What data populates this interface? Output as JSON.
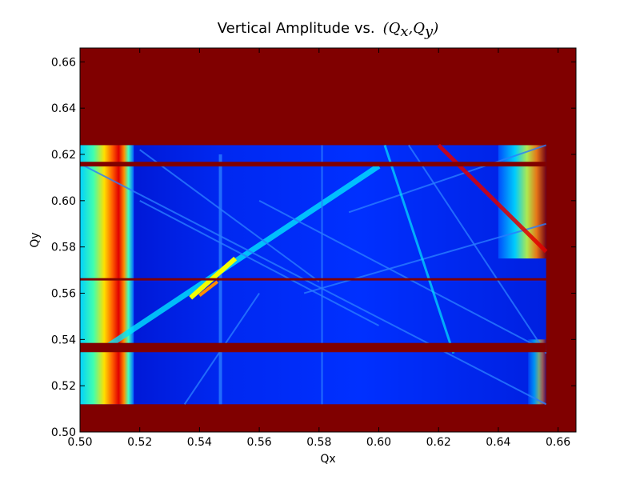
{
  "chart_data": {
    "type": "heatmap",
    "title_prefix": "Vertical Amplitude vs.",
    "title_math": "(Q",
    "title_sub_x": "x",
    "title_comma": ",Q",
    "title_sub_y": "y",
    "title_close": ")",
    "xlabel": "Qx",
    "ylabel": "Qy",
    "xlim": [
      0.5,
      0.666
    ],
    "ylim": [
      0.5,
      0.666
    ],
    "x_ticks": [
      "0.50",
      "0.52",
      "0.54",
      "0.56",
      "0.58",
      "0.60",
      "0.62",
      "0.64",
      "0.66"
    ],
    "y_ticks": [
      "0.50",
      "0.52",
      "0.54",
      "0.56",
      "0.58",
      "0.60",
      "0.62",
      "0.64",
      "0.66"
    ],
    "colormap": "jet",
    "colors": {
      "background_max": "#800000",
      "field_low": "#00009f",
      "field_mid": "#0a3cff",
      "line_bright": "#2a7dff",
      "cyan": "#00e5ff",
      "yellow": "#f2ff00",
      "orange": "#ff8c00",
      "red": "#e00000"
    },
    "data_region": {
      "x_range": [
        0.5,
        0.656
      ],
      "y_range": [
        0.512,
        0.624
      ]
    },
    "saturated_bands": [
      {
        "axis": "y",
        "from": 0.5345,
        "to": 0.5385
      },
      {
        "axis": "y",
        "from": 0.6148,
        "to": 0.6168
      },
      {
        "axis": "y",
        "from": 0.5655,
        "to": 0.5665
      }
    ],
    "resonance_lines": [
      {
        "x1": 0.508,
        "y1": 0.536,
        "x2": 0.6,
        "y2": 0.615,
        "strength": "high"
      },
      {
        "x1": 0.5,
        "y1": 0.616,
        "x2": 0.656,
        "y2": 0.512,
        "strength": "low"
      },
      {
        "x1": 0.56,
        "y1": 0.6,
        "x2": 0.656,
        "y2": 0.535,
        "strength": "low"
      },
      {
        "x1": 0.61,
        "y1": 0.624,
        "x2": 0.656,
        "y2": 0.534,
        "strength": "low"
      },
      {
        "x1": 0.52,
        "y1": 0.6,
        "x2": 0.6,
        "y2": 0.546,
        "strength": "low"
      },
      {
        "x1": 0.52,
        "y1": 0.622,
        "x2": 0.58,
        "y2": 0.565,
        "strength": "low"
      },
      {
        "x1": 0.575,
        "y1": 0.56,
        "x2": 0.656,
        "y2": 0.59,
        "strength": "low"
      },
      {
        "x1": 0.59,
        "y1": 0.595,
        "x2": 0.656,
        "y2": 0.624,
        "strength": "low"
      },
      {
        "x1": 0.547,
        "y1": 0.62,
        "x2": 0.547,
        "y2": 0.512,
        "strength": "mid"
      },
      {
        "x1": 0.581,
        "y1": 0.624,
        "x2": 0.581,
        "y2": 0.512,
        "strength": "low"
      },
      {
        "x1": 0.535,
        "y1": 0.512,
        "x2": 0.56,
        "y2": 0.56,
        "strength": "low"
      }
    ]
  }
}
